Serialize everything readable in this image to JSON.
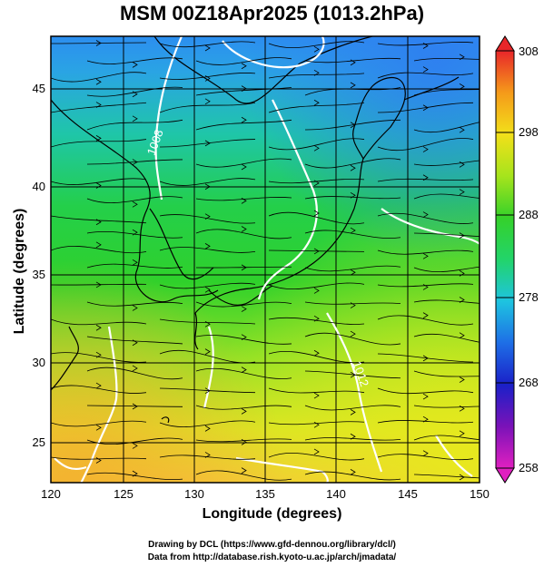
{
  "title": "MSM 00Z18Apr2025 (1013.2hPa)",
  "axes": {
    "xlabel": "Longitude (degrees)",
    "ylabel": "Latitude  (degrees)",
    "x_ticks": [
      "120",
      "125",
      "130",
      "135",
      "140",
      "145",
      "150"
    ],
    "y_ticks": [
      "25",
      "30",
      "35",
      "40",
      "45"
    ]
  },
  "colorbar": {
    "ticks": [
      "308",
      "298",
      "288",
      "278",
      "268",
      "258"
    ],
    "min": 258,
    "max": 308
  },
  "contour_labels": [
    "1008",
    "1012"
  ],
  "credits": {
    "line1": "Drawing by DCL (https://www.gfd-dennou.org/library/dcl/)",
    "line2": "Data from http://database.rish.kyoto-u.ac.jp/arch/jmadata/"
  },
  "map_extent": {
    "lon": [
      120,
      150
    ],
    "lat": [
      22.5,
      47.5
    ]
  },
  "colors": {
    "warm": "#f4d81a",
    "mid": "#35d12a",
    "cool": "#22c8c4",
    "cold": "#2f8fea",
    "contour": "#ffffff",
    "streamline": "#000000"
  }
}
